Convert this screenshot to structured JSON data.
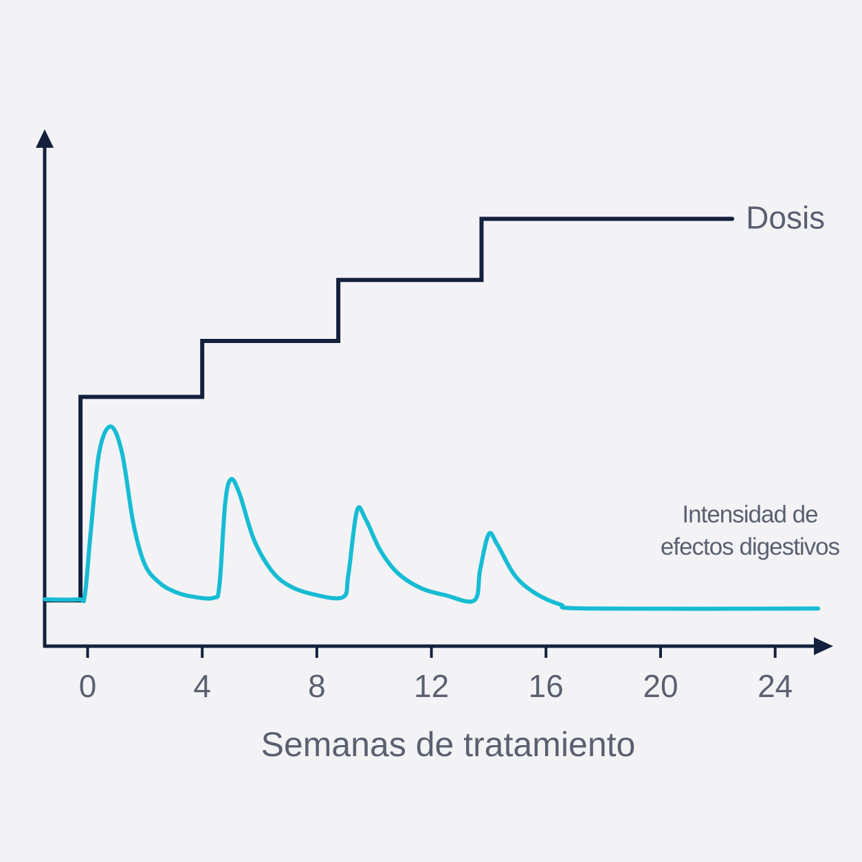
{
  "chart_data": {
    "type": "line",
    "xlabel": "Semanas de tratamiento",
    "xlim": [
      -1.5,
      26
    ],
    "xticks": [
      0,
      4,
      8,
      12,
      16,
      20,
      24
    ],
    "ylim": [
      0,
      100
    ],
    "series": [
      {
        "name": "Dosis",
        "color": "#14213d",
        "smooth": false,
        "x": [
          -1.5,
          -0.25,
          -0.25,
          4,
          4,
          8.75,
          8.75,
          13.75,
          13.75,
          22.5
        ],
        "values": [
          9,
          9,
          49,
          49,
          60,
          60,
          72,
          72,
          84,
          84
        ]
      },
      {
        "name": "Intensidad de efectos digestivos",
        "color": "#17bcd3",
        "smooth": true,
        "x": [
          -1.5,
          -0.3,
          -0.1,
          0.1,
          0.4,
          0.8,
          1.2,
          1.6,
          2.0,
          2.5,
          3.0,
          3.6,
          4.4,
          4.6,
          4.8,
          5.0,
          5.3,
          5.8,
          6.4,
          7.0,
          7.8,
          8.9,
          9.1,
          9.4,
          9.7,
          10.2,
          10.8,
          11.6,
          12.5,
          13.5,
          13.7,
          14.0,
          14.3,
          14.9,
          15.6,
          16.5,
          17.5,
          25.5
        ],
        "values": [
          9.2,
          9.2,
          10,
          22,
          38,
          43.2,
          38,
          24,
          16,
          12.5,
          10.8,
          9.8,
          9.5,
          12,
          28,
          32.8,
          30,
          21,
          15,
          12,
          10.3,
          9.6,
          14,
          26.6,
          25,
          19,
          14.5,
          11.5,
          10,
          9,
          15,
          22,
          20,
          14,
          10.5,
          8.2,
          7.4,
          7.4
        ]
      }
    ]
  }
}
